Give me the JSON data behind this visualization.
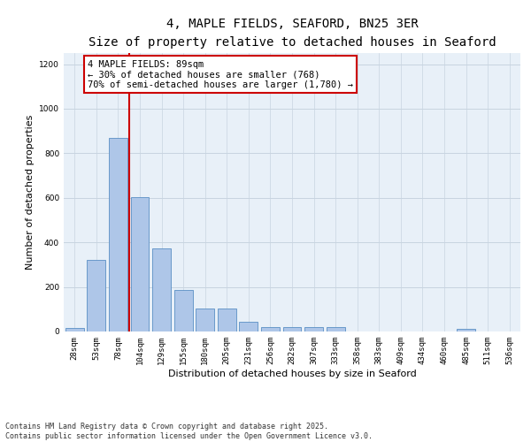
{
  "title_line1": "4, MAPLE FIELDS, SEAFORD, BN25 3ER",
  "title_line2": "Size of property relative to detached houses in Seaford",
  "xlabel": "Distribution of detached houses by size in Seaford",
  "ylabel": "Number of detached properties",
  "categories": [
    "28sqm",
    "53sqm",
    "78sqm",
    "104sqm",
    "129sqm",
    "155sqm",
    "180sqm",
    "205sqm",
    "231sqm",
    "256sqm",
    "282sqm",
    "307sqm",
    "333sqm",
    "358sqm",
    "383sqm",
    "409sqm",
    "434sqm",
    "460sqm",
    "485sqm",
    "511sqm",
    "536sqm"
  ],
  "values": [
    15,
    320,
    870,
    605,
    375,
    185,
    105,
    105,
    45,
    20,
    18,
    18,
    20,
    0,
    0,
    0,
    0,
    0,
    10,
    0,
    0
  ],
  "bar_color": "#aec6e8",
  "bar_edge_color": "#5a8fc4",
  "ylim": [
    0,
    1250
  ],
  "yticks": [
    0,
    200,
    400,
    600,
    800,
    1000,
    1200
  ],
  "grid_color": "#c8d4e0",
  "background_color": "#e8f0f8",
  "annotation_text": "4 MAPLE FIELDS: 89sqm\n← 30% of detached houses are smaller (768)\n70% of semi-detached houses are larger (1,780) →",
  "annotation_box_color": "#ffffff",
  "annotation_box_edge": "#cc0000",
  "vline_color": "#cc0000",
  "footnote": "Contains HM Land Registry data © Crown copyright and database right 2025.\nContains public sector information licensed under the Open Government Licence v3.0.",
  "title_fontsize": 10,
  "subtitle_fontsize": 9,
  "axis_label_fontsize": 8,
  "tick_fontsize": 6.5,
  "annotation_fontsize": 7.5,
  "footnote_fontsize": 6
}
